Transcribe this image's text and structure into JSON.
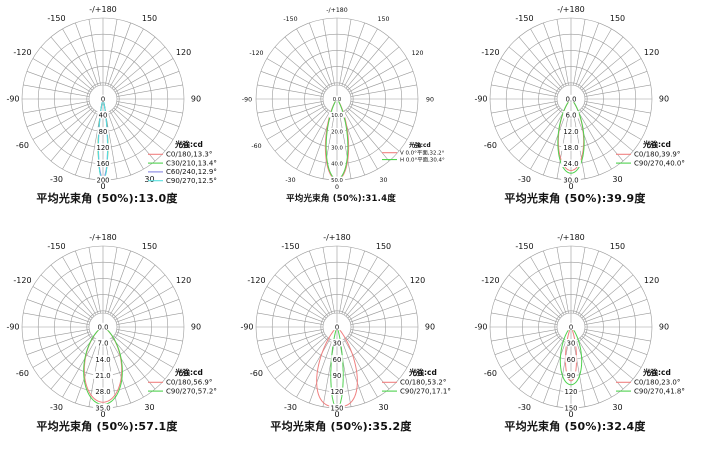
{
  "page": {
    "background": "#ffffff"
  },
  "chart_data": {
    "type": "polar-line",
    "layout": "2x3-grid",
    "grid_color": "#9a9a9a",
    "angle_labels": [
      {
        "angle": 180,
        "label": "-/+180"
      },
      {
        "angle": -150,
        "label": "-150"
      },
      {
        "angle": 150,
        "label": "150"
      },
      {
        "angle": -120,
        "label": "-120"
      },
      {
        "angle": 120,
        "label": "120"
      },
      {
        "angle": -90,
        "label": "-90"
      },
      {
        "angle": 90,
        "label": "90"
      },
      {
        "angle": -60,
        "label": "-60"
      },
      {
        "angle": 60,
        "label": "60"
      },
      {
        "angle": -30,
        "label": "-30"
      },
      {
        "angle": 30,
        "label": "30"
      },
      {
        "angle": 0,
        "label": "0"
      }
    ],
    "charts": [
      {
        "radial_ticks": [
          "0",
          "40",
          "80",
          "120",
          "160",
          "200"
        ],
        "r_max": 200,
        "unit_label": "光強:cd",
        "series": [
          {
            "name": "C0/180,13.3°",
            "color": "#f08080",
            "peak": 198,
            "beam_angle_deg": 13.3,
            "shape_exp": 2
          },
          {
            "name": "C30/210,13.4°",
            "color": "#4fd24f",
            "peak": 199,
            "beam_angle_deg": 13.4,
            "shape_exp": 2
          },
          {
            "name": "C60/240,12.9°",
            "color": "#8585e0",
            "peak": 196,
            "beam_angle_deg": 12.9,
            "shape_exp": 2
          },
          {
            "name": "C90/270,12.5°",
            "color": "#57dede",
            "peak": 203,
            "beam_angle_deg": 12.5,
            "shape_exp": 2
          }
        ],
        "caption": "平均光束角 (50%):13.0度",
        "font_scale": 1
      },
      {
        "radial_ticks": [
          "0.0",
          "10.0",
          "20.0",
          "30.0",
          "40.0",
          "50.0"
        ],
        "r_max": 50,
        "unit_label": "光強:cd",
        "series": [
          {
            "name": "V 0.0°平面,32.2°",
            "color": "#f08080",
            "peak": 50,
            "beam_angle_deg": 32.2,
            "shape_exp": 2
          },
          {
            "name": "H 0.0°平面,30.4°",
            "color": "#4fd24f",
            "peak": 49.5,
            "beam_angle_deg": 30.4,
            "shape_exp": 2
          }
        ],
        "caption": "平均光束角 (50%):31.4度",
        "font_scale": 0.78
      },
      {
        "radial_ticks": [
          "0.0",
          "6.0",
          "12.0",
          "18.0",
          "24.0",
          "30.0"
        ],
        "r_max": 30,
        "unit_label": "光強:cd",
        "series": [
          {
            "name": "C0/180,39.9°",
            "color": "#f08080",
            "peak": 26.5,
            "beam_angle_deg": 39.9,
            "shape_exp": 2
          },
          {
            "name": "C90/270,40.0°",
            "color": "#4fd24f",
            "peak": 27.5,
            "beam_angle_deg": 40.0,
            "shape_exp": 2
          }
        ],
        "caption": "平均光束角 (50%):39.9度",
        "font_scale": 1
      },
      {
        "radial_ticks": [
          "0.0",
          "7.0",
          "14.0",
          "21.0",
          "28.0",
          "35.0"
        ],
        "r_max": 35,
        "unit_label": "光強:cd",
        "series": [
          {
            "name": "C0/180,56.9°",
            "color": "#f08080",
            "peak": 32.5,
            "beam_angle_deg": 56.9,
            "shape_exp": 2
          },
          {
            "name": "C90/270,57.2°",
            "color": "#4fd24f",
            "peak": 33.5,
            "beam_angle_deg": 57.2,
            "shape_exp": 2
          }
        ],
        "caption": "平均光束角 (50%):57.1度",
        "font_scale": 1
      },
      {
        "radial_ticks": [
          "0",
          "30",
          "60",
          "90",
          "120",
          "150"
        ],
        "r_max": 150,
        "unit_label": "光強:cd",
        "series": [
          {
            "name": "C0/180,53.2°",
            "color": "#f08080",
            "peak": 148,
            "beam_angle_deg": 53.2,
            "shape_exp": 3
          },
          {
            "name": "C90/270,17.1°",
            "color": "#4fd24f",
            "peak": 150,
            "beam_angle_deg": 17.1,
            "shape_exp": 2
          }
        ],
        "caption": "平均光束角 (50%):35.2度",
        "font_scale": 1
      },
      {
        "radial_ticks": [
          "0",
          "30",
          "60",
          "90",
          "120",
          "150"
        ],
        "r_max": 150,
        "unit_label": "光強:cd",
        "series": [
          {
            "name": "C0/180,23.0°",
            "color": "#f08080",
            "peak": 100,
            "beam_angle_deg": 23.0,
            "shape_exp": 2
          },
          {
            "name": "C90/270,41.8°",
            "color": "#4fd24f",
            "peak": 107,
            "beam_angle_deg": 41.8,
            "shape_exp": 2
          }
        ],
        "caption": "平均光束角 (50%):32.4度",
        "font_scale": 1
      }
    ]
  }
}
